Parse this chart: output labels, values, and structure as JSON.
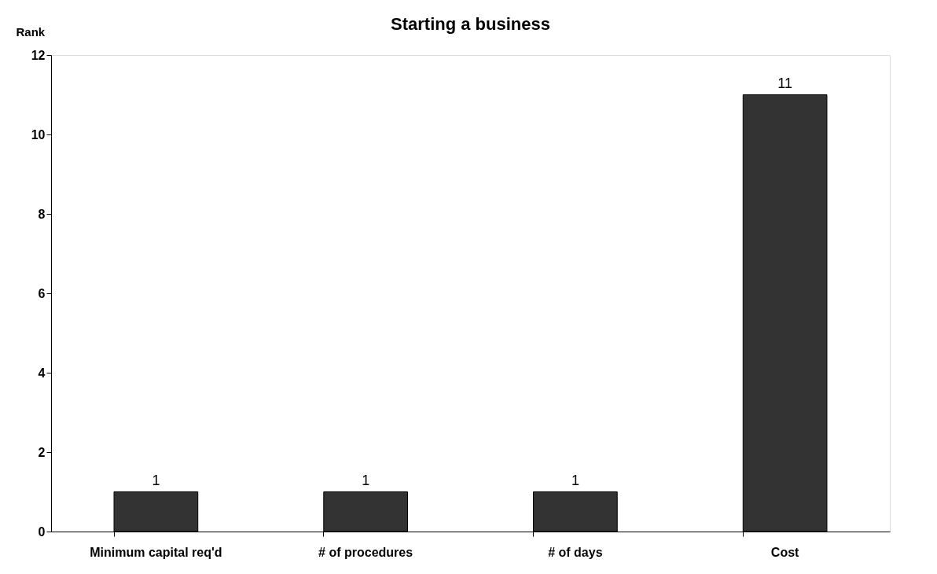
{
  "chart_data": {
    "type": "bar",
    "title": "Starting a business",
    "ylabel": "Rank",
    "categories": [
      "Minimum capital req'd",
      "# of procedures",
      "# of days",
      "Cost"
    ],
    "values": [
      1,
      1,
      1,
      11
    ],
    "color": "#333333",
    "ylim": [
      0,
      12
    ],
    "yticks": [
      0,
      2,
      4,
      6,
      8,
      10,
      12
    ],
    "grid": false,
    "data_labels": true
  }
}
